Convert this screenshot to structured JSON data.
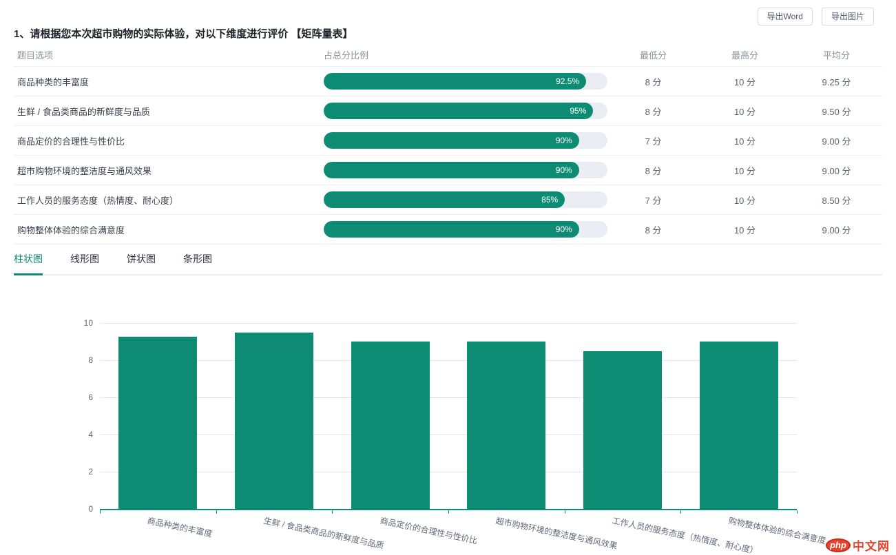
{
  "colors": {
    "accent": "#0d8c73",
    "progress_track": "#eaedf3",
    "watermark_red": "#e8432c"
  },
  "toolbar": {
    "export_word_label": "导出Word",
    "export_image_label": "导出图片"
  },
  "question": {
    "title": "1、请根据您本次超市购物的实际体验，对以下维度进行评价 【矩阵量表】"
  },
  "table": {
    "headers": {
      "option": "题目选项",
      "ratio": "占总分比例",
      "min": "最低分",
      "max": "最高分",
      "avg": "平均分"
    },
    "rows": [
      {
        "label": "商品种类的丰富度",
        "percent": 92.5,
        "percent_label": "92.5%",
        "min": "8 分",
        "max": "10 分",
        "avg": "9.25 分"
      },
      {
        "label": "生鲜 / 食品类商品的新鲜度与品质",
        "percent": 95,
        "percent_label": "95%",
        "min": "8 分",
        "max": "10 分",
        "avg": "9.50 分"
      },
      {
        "label": "商品定价的合理性与性价比",
        "percent": 90,
        "percent_label": "90%",
        "min": "7 分",
        "max": "10 分",
        "avg": "9.00 分"
      },
      {
        "label": "超市购物环境的整洁度与通风效果",
        "percent": 90,
        "percent_label": "90%",
        "min": "8 分",
        "max": "10 分",
        "avg": "9.00 分"
      },
      {
        "label": "工作人员的服务态度（热情度、耐心度）",
        "percent": 85,
        "percent_label": "85%",
        "min": "7 分",
        "max": "10 分",
        "avg": "8.50 分"
      },
      {
        "label": "购物整体体验的综合满意度",
        "percent": 90,
        "percent_label": "90%",
        "min": "8 分",
        "max": "10 分",
        "avg": "9.00 分"
      }
    ]
  },
  "tabs": {
    "items": [
      {
        "label": "柱状图",
        "active": true
      },
      {
        "label": "线形图",
        "active": false
      },
      {
        "label": "饼状图",
        "active": false
      },
      {
        "label": "条形图",
        "active": false
      }
    ]
  },
  "chart_data": {
    "type": "bar",
    "title": "",
    "xlabel": "",
    "ylabel": "",
    "categories": [
      "商品种类的丰富度",
      "生鲜 / 食品类商品的新鲜度与品质",
      "商品定价的合理性与性价比",
      "超市购物环境的整洁度与通风效果",
      "工作人员的服务态度（热情度、耐心度）",
      "购物整体体验的综合满意度"
    ],
    "values": [
      9.25,
      9.5,
      9,
      9,
      8.5,
      9
    ],
    "ylim": [
      0,
      10
    ],
    "yticks": [
      0,
      2,
      4,
      6,
      8,
      10
    ],
    "grid": true,
    "legend": "none",
    "bar_color": "#0d8c73",
    "x_label_rotation_deg": 12
  },
  "watermark": {
    "badge": "php",
    "site": "中文网"
  }
}
